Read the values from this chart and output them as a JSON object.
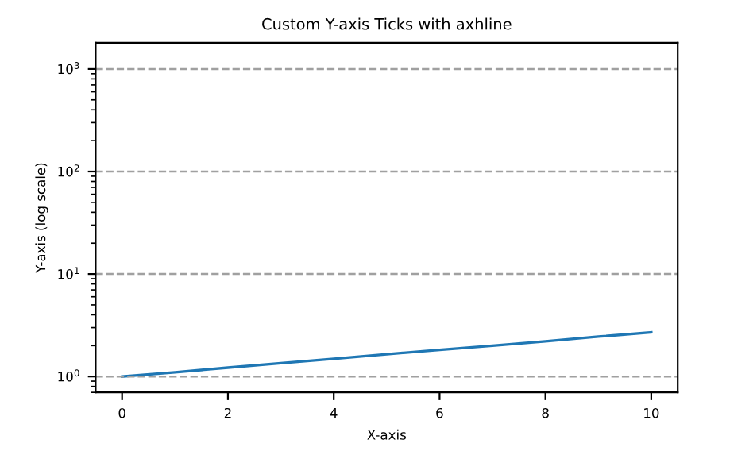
{
  "chart_data": {
    "type": "line",
    "title": "Custom Y-axis Ticks with axhline",
    "xlabel": "X-axis",
    "ylabel": "Y-axis (log scale)",
    "x": [
      0,
      1,
      2,
      3,
      4,
      5,
      6,
      7,
      8,
      9,
      10
    ],
    "series": [
      {
        "color": "#1f77b4",
        "values": [
          1.0,
          1.1,
          1.22,
          1.35,
          1.49,
          1.65,
          1.82,
          2.0,
          2.2,
          2.45,
          2.7
        ]
      }
    ],
    "log": "y",
    "xlim": [
      -0.5,
      10.5
    ],
    "xticks": [
      0,
      2,
      4,
      6,
      8,
      10
    ],
    "ylim": [
      0.7,
      1800
    ],
    "yticks": [
      {
        "value": 1,
        "label": "10$^{0}$"
      },
      {
        "value": 10,
        "label": "10$^{1}$"
      },
      {
        "value": 100,
        "label": "10$^{2}$"
      },
      {
        "value": 1000,
        "label": "10$^{3}$"
      }
    ],
    "ref_lines": [
      {
        "axis": "y",
        "value": 1,
        "color": "#a0a0a0",
        "line_style": "dashed"
      },
      {
        "axis": "y",
        "value": 10,
        "color": "#a0a0a0",
        "line_style": "dashed"
      },
      {
        "axis": "y",
        "value": 100,
        "color": "#a0a0a0",
        "line_style": "dashed"
      },
      {
        "axis": "y",
        "value": 1000,
        "color": "#a0a0a0",
        "line_style": "dashed"
      }
    ],
    "grid": false,
    "marker": "none",
    "line_style": "solid"
  }
}
